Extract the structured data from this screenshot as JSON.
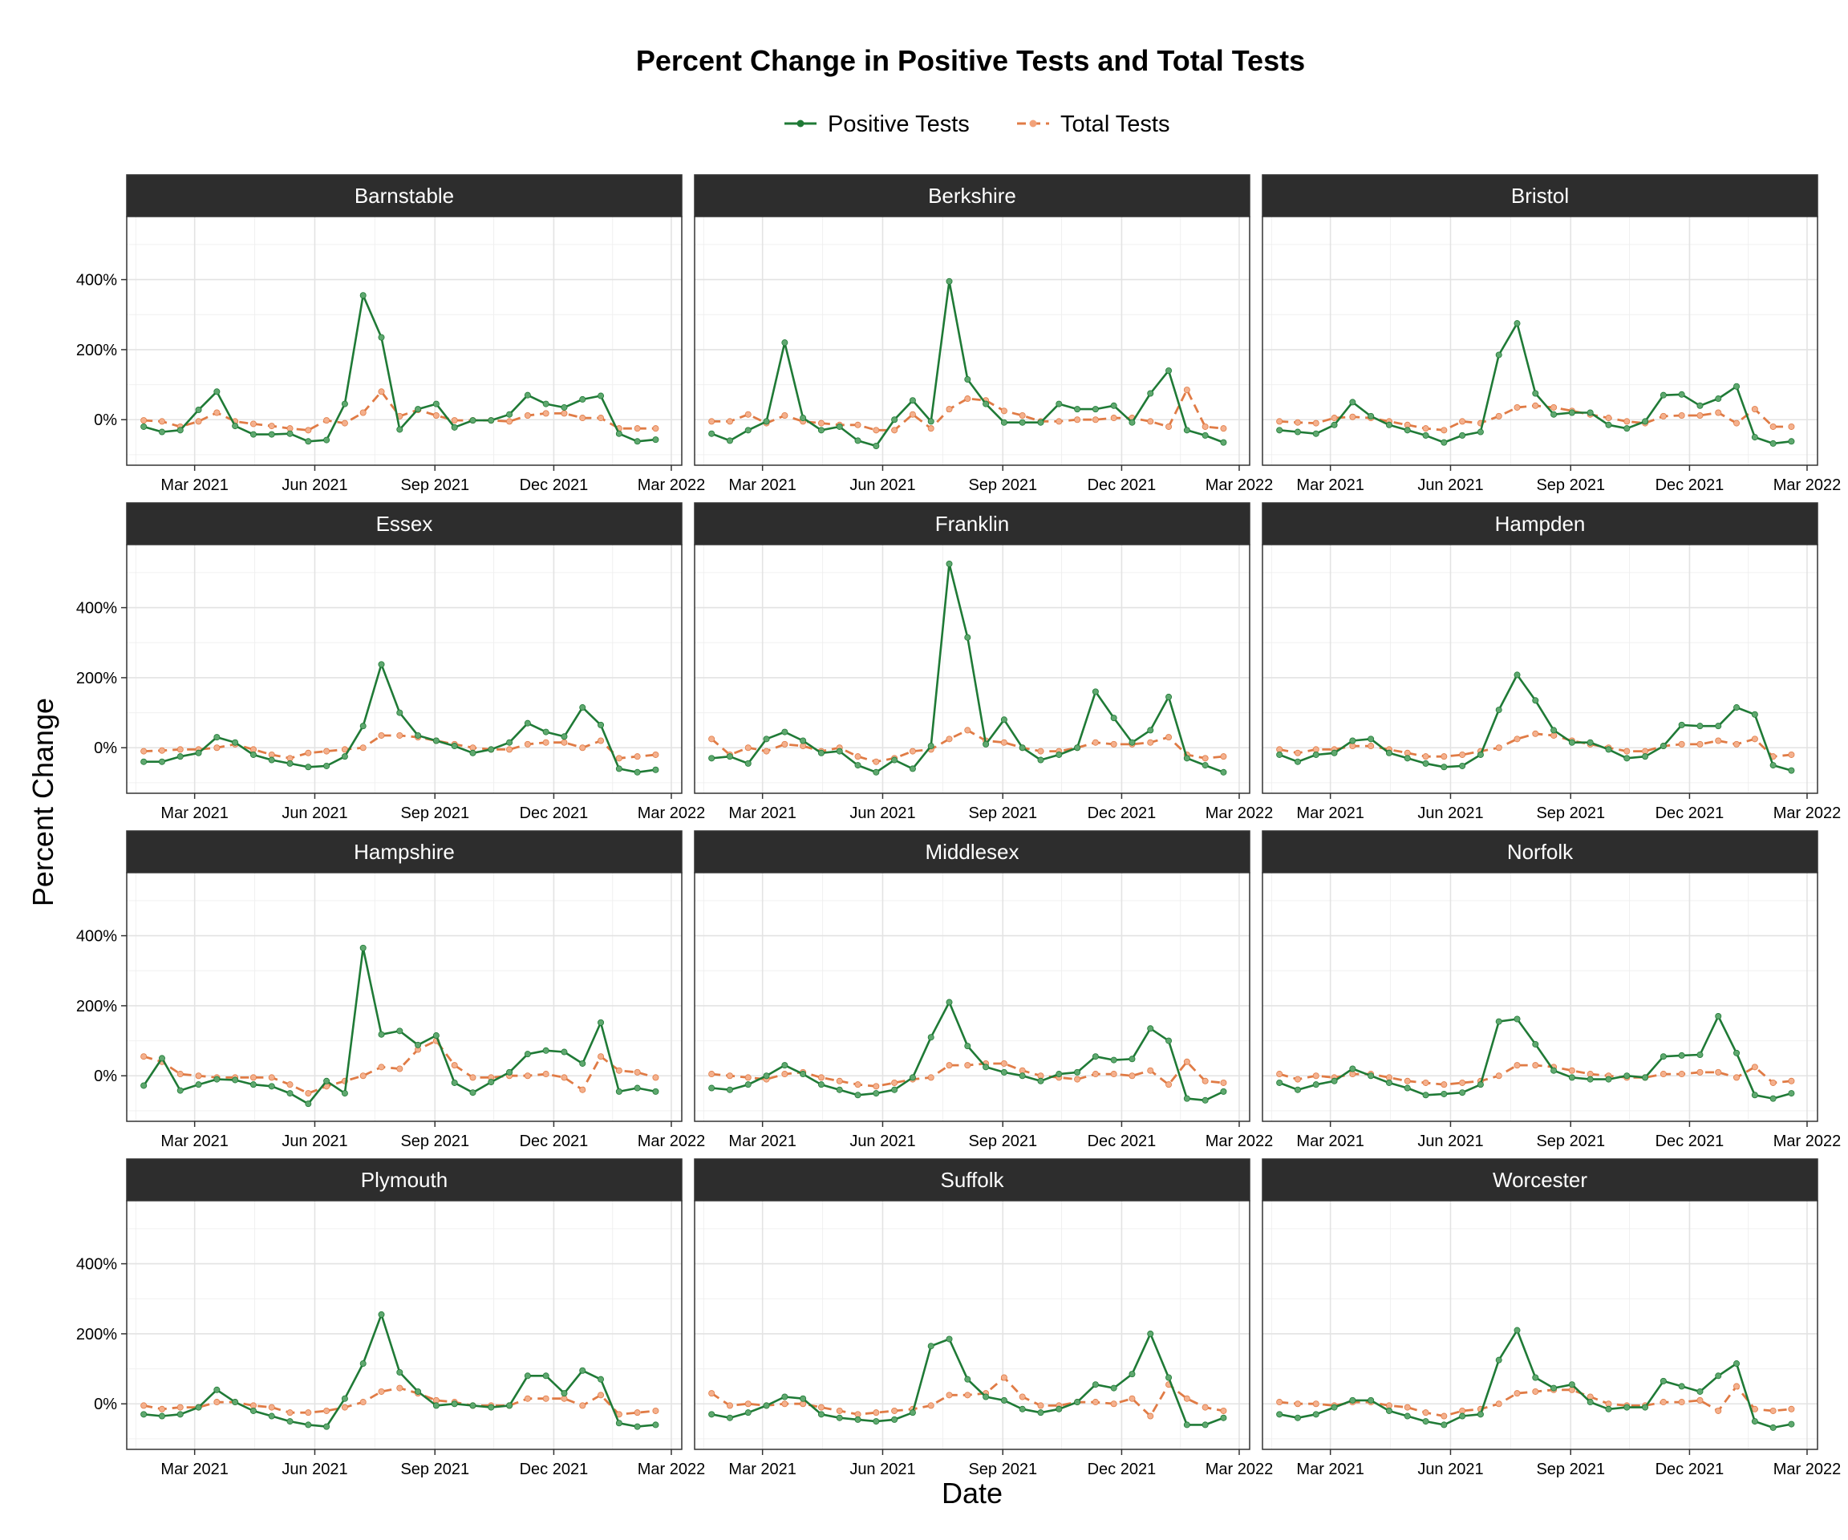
{
  "chart_data": {
    "type": "line",
    "title": "Percent Change in Positive Tests and Total Tests",
    "xlabel": "Date",
    "ylabel": "Percent Change",
    "x_ticks": [
      "Mar 2021",
      "Jun 2021",
      "Sep 2021",
      "Dec 2021",
      "Mar 2022"
    ],
    "y_ticks": [
      "400%",
      "200%",
      "0%"
    ],
    "ylim": [
      -130,
      580
    ],
    "xlim": [
      "2021-01-08",
      "2022-03-09"
    ],
    "legend_position": "top",
    "grid": true,
    "colors": {
      "positive": "#1f7a36",
      "total": "#e07b45",
      "strip": "#2d2d2d"
    },
    "series_names": [
      "Positive Tests",
      "Total Tests"
    ],
    "dates": [
      "2021-01-21",
      "2021-02-04",
      "2021-02-18",
      "2021-03-04",
      "2021-03-18",
      "2021-04-01",
      "2021-04-15",
      "2021-04-29",
      "2021-05-13",
      "2021-05-27",
      "2021-06-10",
      "2021-06-24",
      "2021-07-08",
      "2021-07-22",
      "2021-08-05",
      "2021-08-19",
      "2021-09-02",
      "2021-09-16",
      "2021-09-30",
      "2021-10-14",
      "2021-10-28",
      "2021-11-11",
      "2021-11-25",
      "2021-12-09",
      "2021-12-23",
      "2022-01-06",
      "2022-01-20",
      "2022-02-03",
      "2022-02-17"
    ],
    "panels": [
      {
        "name": "Barnstable",
        "positive": [
          -20,
          -35,
          -30,
          28,
          80,
          -18,
          -42,
          -42,
          -40,
          -62,
          -58,
          45,
          355,
          235,
          -28,
          30,
          45,
          -22,
          -2,
          -2,
          15,
          70,
          45,
          35,
          58,
          68,
          -40,
          -62,
          -57
        ],
        "total": [
          -2,
          -5,
          -20,
          -5,
          20,
          -5,
          -12,
          -18,
          -25,
          -30,
          -2,
          -10,
          20,
          80,
          10,
          28,
          12,
          -2,
          -2,
          -2,
          -5,
          12,
          18,
          18,
          5,
          5,
          -25,
          -25,
          -25
        ]
      },
      {
        "name": "Berkshire",
        "positive": [
          -40,
          -60,
          -30,
          -5,
          220,
          5,
          -30,
          -20,
          -60,
          -75,
          0,
          55,
          -5,
          395,
          115,
          45,
          -8,
          -8,
          -8,
          45,
          30,
          30,
          40,
          -8,
          75,
          140,
          -30,
          -45,
          -65
        ],
        "total": [
          -5,
          -5,
          15,
          -10,
          12,
          -5,
          -10,
          -15,
          -15,
          -30,
          -30,
          15,
          -25,
          30,
          60,
          55,
          25,
          12,
          -5,
          -5,
          0,
          0,
          5,
          5,
          -5,
          -20,
          85,
          -20,
          -25
        ]
      },
      {
        "name": "Bristol",
        "positive": [
          -30,
          -35,
          -40,
          -15,
          50,
          10,
          -15,
          -30,
          -45,
          -65,
          -45,
          -35,
          185,
          275,
          75,
          15,
          20,
          20,
          -15,
          -25,
          -5,
          70,
          72,
          40,
          60,
          95,
          -50,
          -68,
          -62
        ],
        "total": [
          -5,
          -8,
          -10,
          5,
          8,
          5,
          -5,
          -15,
          -25,
          -30,
          -5,
          -10,
          10,
          35,
          40,
          35,
          25,
          15,
          5,
          -5,
          -10,
          10,
          12,
          12,
          20,
          -10,
          30,
          -20,
          -20
        ]
      },
      {
        "name": "Essex",
        "positive": [
          -40,
          -40,
          -25,
          -15,
          30,
          15,
          -20,
          -35,
          -45,
          -55,
          -52,
          -25,
          62,
          238,
          100,
          35,
          20,
          5,
          -15,
          -5,
          15,
          70,
          45,
          32,
          115,
          65,
          -60,
          -70,
          -63
        ],
        "total": [
          -10,
          -8,
          -5,
          -5,
          0,
          10,
          -5,
          -20,
          -30,
          -15,
          -10,
          -5,
          0,
          35,
          35,
          30,
          20,
          10,
          0,
          -5,
          -5,
          10,
          15,
          15,
          0,
          20,
          -30,
          -25,
          -20
        ]
      },
      {
        "name": "Franklin",
        "positive": [
          -30,
          -25,
          -45,
          25,
          45,
          20,
          -15,
          -10,
          -50,
          -70,
          -35,
          -60,
          5,
          525,
          315,
          10,
          80,
          0,
          -35,
          -20,
          0,
          160,
          85,
          15,
          50,
          145,
          -30,
          -50,
          -70
        ],
        "total": [
          25,
          -20,
          0,
          -10,
          10,
          5,
          -10,
          0,
          -25,
          -40,
          -30,
          -10,
          -5,
          25,
          50,
          20,
          15,
          0,
          -10,
          -10,
          0,
          15,
          10,
          10,
          15,
          30,
          -20,
          -30,
          -25
        ]
      },
      {
        "name": "Hampden",
        "positive": [
          -20,
          -40,
          -20,
          -15,
          20,
          25,
          -15,
          -30,
          -45,
          -55,
          -52,
          -20,
          108,
          208,
          135,
          50,
          15,
          15,
          -5,
          -30,
          -25,
          5,
          65,
          62,
          62,
          115,
          95,
          -50,
          -65
        ],
        "total": [
          -5,
          -15,
          -5,
          -5,
          5,
          5,
          -5,
          -15,
          -25,
          -25,
          -20,
          -10,
          0,
          25,
          40,
          35,
          20,
          10,
          0,
          -10,
          -10,
          5,
          10,
          10,
          20,
          10,
          25,
          -25,
          -20
        ]
      },
      {
        "name": "Hampshire",
        "positive": [
          -28,
          50,
          -42,
          -25,
          -10,
          -12,
          -25,
          -30,
          -50,
          -80,
          -15,
          -50,
          365,
          118,
          128,
          88,
          115,
          -20,
          -48,
          -18,
          10,
          62,
          72,
          68,
          35,
          152,
          -45,
          -35,
          -45
        ],
        "total": [
          55,
          40,
          5,
          0,
          -5,
          -5,
          -5,
          -5,
          -25,
          -50,
          -30,
          -15,
          0,
          25,
          20,
          75,
          100,
          30,
          -5,
          -5,
          0,
          0,
          5,
          -5,
          -40,
          55,
          15,
          10,
          -5
        ]
      },
      {
        "name": "Middlesex",
        "positive": [
          -35,
          -40,
          -25,
          0,
          30,
          5,
          -25,
          -40,
          -55,
          -50,
          -40,
          -5,
          110,
          210,
          85,
          25,
          10,
          0,
          -15,
          5,
          10,
          55,
          45,
          48,
          135,
          100,
          -65,
          -70,
          -45
        ],
        "total": [
          5,
          0,
          -5,
          -10,
          5,
          10,
          -5,
          -15,
          -25,
          -30,
          -20,
          -10,
          -5,
          30,
          30,
          35,
          35,
          15,
          0,
          -5,
          -10,
          5,
          5,
          0,
          15,
          -25,
          40,
          -15,
          -20
        ]
      },
      {
        "name": "Norfolk",
        "positive": [
          -20,
          -40,
          -25,
          -15,
          20,
          0,
          -20,
          -35,
          -55,
          -52,
          -48,
          -25,
          155,
          162,
          90,
          15,
          -5,
          -10,
          -10,
          0,
          -5,
          55,
          58,
          60,
          170,
          65,
          -55,
          -65,
          -50
        ],
        "total": [
          5,
          -10,
          0,
          -5,
          5,
          5,
          -5,
          -15,
          -20,
          -25,
          -20,
          -15,
          0,
          30,
          30,
          25,
          15,
          5,
          0,
          -5,
          -5,
          5,
          5,
          10,
          10,
          -5,
          25,
          -20,
          -15
        ]
      },
      {
        "name": "Plymouth",
        "positive": [
          -30,
          -35,
          -30,
          -10,
          40,
          5,
          -20,
          -35,
          -50,
          -60,
          -65,
          15,
          115,
          255,
          90,
          35,
          -5,
          0,
          -5,
          -10,
          -5,
          80,
          80,
          30,
          95,
          70,
          -55,
          -65,
          -60
        ],
        "total": [
          -5,
          -15,
          -10,
          -10,
          5,
          5,
          -5,
          -10,
          -25,
          -25,
          -20,
          -10,
          5,
          35,
          45,
          30,
          10,
          5,
          -5,
          -5,
          -5,
          15,
          15,
          15,
          -5,
          25,
          -30,
          -25,
          -20
        ]
      },
      {
        "name": "Suffolk",
        "positive": [
          -30,
          -40,
          -25,
          -5,
          20,
          15,
          -30,
          -40,
          -45,
          -50,
          -45,
          -25,
          165,
          185,
          70,
          20,
          10,
          -15,
          -25,
          -15,
          5,
          55,
          45,
          85,
          200,
          75,
          -60,
          -60,
          -40
        ],
        "total": [
          30,
          -5,
          0,
          -5,
          0,
          0,
          -10,
          -20,
          -30,
          -25,
          -20,
          -15,
          -5,
          25,
          25,
          30,
          75,
          20,
          -5,
          -5,
          5,
          5,
          0,
          15,
          -35,
          55,
          15,
          -10,
          -20
        ]
      },
      {
        "name": "Worcester",
        "positive": [
          -30,
          -40,
          -30,
          -10,
          10,
          10,
          -20,
          -35,
          -50,
          -60,
          -35,
          -30,
          125,
          210,
          75,
          45,
          55,
          5,
          -15,
          -10,
          -10,
          65,
          50,
          35,
          80,
          115,
          -50,
          -68,
          -58
        ],
        "total": [
          5,
          0,
          0,
          -5,
          5,
          5,
          -5,
          -10,
          -25,
          -35,
          -20,
          -15,
          0,
          30,
          35,
          40,
          40,
          20,
          0,
          -5,
          -5,
          5,
          5,
          10,
          -20,
          50,
          -15,
          -20,
          -15
        ]
      }
    ]
  }
}
